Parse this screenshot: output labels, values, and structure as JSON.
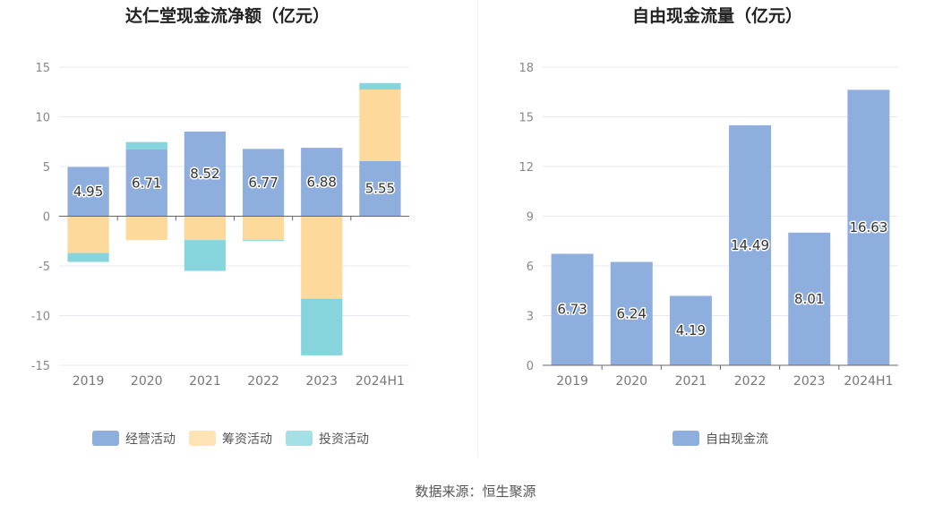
{
  "source": "数据来源：恒生聚源",
  "chart_data": [
    {
      "type": "bar",
      "title": "达仁堂现金流净额（亿元）",
      "stacked": true,
      "categories": [
        "2019",
        "2020",
        "2021",
        "2022",
        "2023",
        "2024H1"
      ],
      "ylim": [
        -15,
        15
      ],
      "yticks": [
        -15,
        -10,
        -5,
        0,
        5,
        10,
        15
      ],
      "grid": true,
      "legend_position": "bottom",
      "series": [
        {
          "name": "经营活动",
          "color": "#8eaedd",
          "values": [
            4.95,
            6.71,
            8.52,
            6.77,
            6.88,
            5.55
          ],
          "labels": [
            "4.95",
            "6.71",
            "8.52",
            "6.77",
            "6.88",
            "5.55"
          ]
        },
        {
          "name": "筹资活动",
          "color": "#fdd99b",
          "values": [
            -3.7,
            -2.4,
            -2.4,
            -2.4,
            -8.3,
            7.2
          ]
        },
        {
          "name": "投资活动",
          "color": "#86d5dc",
          "values": [
            -0.9,
            0.75,
            -3.1,
            -0.1,
            -5.7,
            0.65
          ]
        }
      ]
    },
    {
      "type": "bar",
      "title": "自由现金流量（亿元）",
      "categories": [
        "2019",
        "2020",
        "2021",
        "2022",
        "2023",
        "2024H1"
      ],
      "ylim": [
        0,
        18
      ],
      "yticks": [
        0,
        3,
        6,
        9,
        12,
        15,
        18
      ],
      "grid": true,
      "legend_position": "bottom",
      "series": [
        {
          "name": "自由现金流",
          "color": "#8eaedd",
          "values": [
            6.73,
            6.24,
            4.19,
            14.49,
            8.01,
            16.63
          ],
          "labels": [
            "6.73",
            "6.24",
            "4.19",
            "14.49",
            "8.01",
            "16.63"
          ]
        }
      ]
    }
  ]
}
